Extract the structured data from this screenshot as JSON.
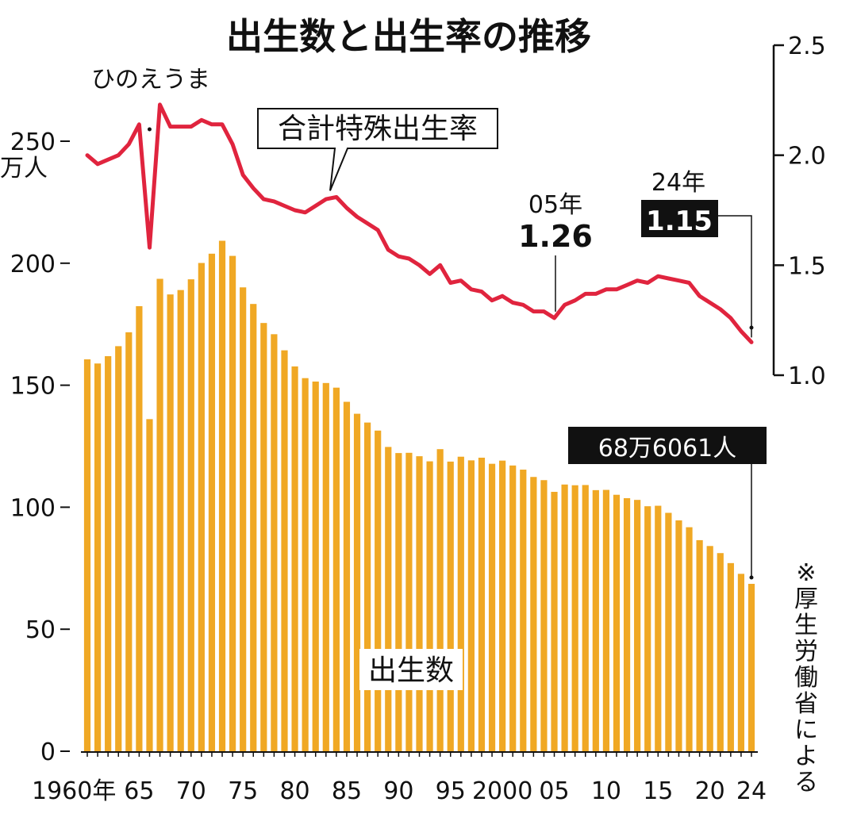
{
  "chart_data": {
    "type": "bar+line",
    "title": "出生数と出生率の推移",
    "x": [
      1960,
      1961,
      1962,
      1963,
      1964,
      1965,
      1966,
      1967,
      1968,
      1969,
      1970,
      1971,
      1972,
      1973,
      1974,
      1975,
      1976,
      1977,
      1978,
      1979,
      1980,
      1981,
      1982,
      1983,
      1984,
      1985,
      1986,
      1987,
      1988,
      1989,
      1990,
      1991,
      1992,
      1993,
      1994,
      1995,
      1996,
      1997,
      1998,
      1999,
      2000,
      2001,
      2002,
      2003,
      2004,
      2005,
      2006,
      2007,
      2008,
      2009,
      2010,
      2011,
      2012,
      2013,
      2014,
      2015,
      2016,
      2017,
      2018,
      2019,
      2020,
      2021,
      2022,
      2023,
      2024
    ],
    "x_tick_labels": [
      {
        "x": 1960,
        "label": "1960年"
      },
      {
        "x": 1965,
        "label": "65"
      },
      {
        "x": 1970,
        "label": "70"
      },
      {
        "x": 1975,
        "label": "75"
      },
      {
        "x": 1980,
        "label": "80"
      },
      {
        "x": 1985,
        "label": "85"
      },
      {
        "x": 1990,
        "label": "90"
      },
      {
        "x": 1995,
        "label": "95"
      },
      {
        "x": 2000,
        "label": "2000"
      },
      {
        "x": 2005,
        "label": "05"
      },
      {
        "x": 2010,
        "label": "10"
      },
      {
        "x": 2015,
        "label": "15"
      },
      {
        "x": 2020,
        "label": "20"
      },
      {
        "x": 2024,
        "label": "24"
      }
    ],
    "left_axis": {
      "unit": [
        "万人"
      ],
      "ylim": [
        0,
        260
      ],
      "ticks": [
        0,
        50,
        100,
        150,
        200,
        250
      ]
    },
    "right_axis": {
      "ylim": [
        1.0,
        2.5
      ],
      "ticks": [
        "1.0",
        "1.5",
        "2.0",
        "2.5"
      ]
    },
    "series": [
      {
        "name": "出生数",
        "type": "bar",
        "axis": "left",
        "color": "#F0A824",
        "values": [
          160.6,
          158.9,
          161.9,
          166.0,
          171.7,
          182.4,
          136.1,
          193.6,
          187.2,
          189.0,
          193.4,
          200.1,
          203.9,
          209.2,
          203.0,
          190.1,
          183.3,
          175.5,
          170.9,
          164.3,
          157.7,
          152.9,
          151.5,
          150.9,
          149.0,
          143.2,
          138.3,
          134.7,
          131.4,
          124.7,
          122.2,
          122.3,
          120.9,
          118.8,
          123.8,
          118.7,
          120.7,
          119.2,
          120.3,
          117.8,
          119.1,
          117.1,
          115.4,
          112.4,
          111.1,
          106.3,
          109.3,
          109.0,
          109.1,
          107.0,
          107.1,
          105.1,
          103.7,
          103.0,
          100.4,
          100.6,
          97.7,
          94.6,
          91.8,
          86.5,
          84.1,
          81.2,
          77.1,
          72.7,
          68.6
        ]
      },
      {
        "name": "合計特殊出生率",
        "type": "line",
        "axis": "right",
        "color": "#E0243E",
        "values": [
          2.0,
          1.96,
          1.98,
          2.0,
          2.05,
          2.14,
          1.58,
          2.23,
          2.13,
          2.13,
          2.13,
          2.16,
          2.14,
          2.14,
          2.05,
          1.91,
          1.85,
          1.8,
          1.79,
          1.77,
          1.75,
          1.74,
          1.77,
          1.8,
          1.81,
          1.76,
          1.72,
          1.69,
          1.66,
          1.57,
          1.54,
          1.53,
          1.5,
          1.46,
          1.5,
          1.42,
          1.43,
          1.39,
          1.38,
          1.34,
          1.36,
          1.33,
          1.32,
          1.29,
          1.29,
          1.26,
          1.32,
          1.34,
          1.37,
          1.37,
          1.39,
          1.39,
          1.41,
          1.43,
          1.42,
          1.45,
          1.44,
          1.43,
          1.42,
          1.36,
          1.33,
          1.3,
          1.26,
          1.2,
          1.15
        ]
      }
    ],
    "annotations": {
      "hinoeuma": "ひのえうま",
      "line_label": "合計特殊出生率",
      "bar_label": "出生数",
      "y2005_year": "05年",
      "y2005_value": "1.26",
      "y2024_year": "24年",
      "y2024_value": "1.15",
      "births_2024": "68万6061人",
      "source": "※厚生労働省による"
    },
    "grid": false
  }
}
